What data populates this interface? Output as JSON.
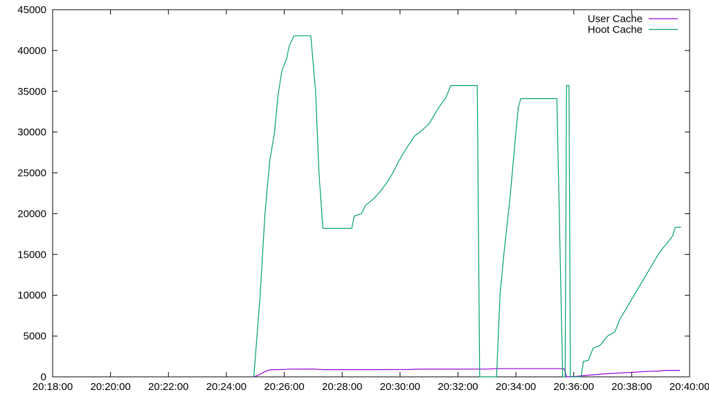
{
  "chart_data": {
    "type": "line",
    "x_format": "HH:MM:SS",
    "xlim": [
      "20:18:00",
      "20:40:00"
    ],
    "ylim": [
      0,
      45000
    ],
    "x_ticks": [
      "20:18:00",
      "20:20:00",
      "20:22:00",
      "20:24:00",
      "20:26:00",
      "20:28:00",
      "20:30:00",
      "20:32:00",
      "20:34:00",
      "20:36:00",
      "20:38:00",
      "20:40:00"
    ],
    "y_ticks": [
      0,
      5000,
      10000,
      15000,
      20000,
      25000,
      30000,
      35000,
      40000,
      45000
    ],
    "legend_position": "top-right",
    "grid": false,
    "series": [
      {
        "name": "User Cache",
        "color": "#9400d3",
        "points": [
          [
            "20:24:57",
            0
          ],
          [
            "20:25:10",
            300
          ],
          [
            "20:25:20",
            650
          ],
          [
            "20:25:30",
            850
          ],
          [
            "20:25:40",
            880
          ],
          [
            "20:26:00",
            900
          ],
          [
            "20:26:10",
            950
          ],
          [
            "20:27:00",
            960
          ],
          [
            "20:27:20",
            880
          ],
          [
            "20:29:00",
            880
          ],
          [
            "20:30:20",
            900
          ],
          [
            "20:30:40",
            940
          ],
          [
            "20:33:00",
            950
          ],
          [
            "20:33:20",
            1000
          ],
          [
            "20:35:40",
            1000
          ],
          [
            "20:35:45",
            0
          ],
          [
            "20:36:05",
            50
          ],
          [
            "20:36:30",
            200
          ],
          [
            "20:37:00",
            350
          ],
          [
            "20:37:30",
            450
          ],
          [
            "20:38:00",
            550
          ],
          [
            "20:38:30",
            650
          ],
          [
            "20:39:00",
            720
          ],
          [
            "20:39:10",
            800
          ],
          [
            "20:39:40",
            800
          ]
        ]
      },
      {
        "name": "Hoot Cache",
        "color": "#009e73",
        "points": [
          [
            "20:24:57",
            0
          ],
          [
            "20:25:10",
            10000
          ],
          [
            "20:25:20",
            20000
          ],
          [
            "20:25:30",
            26500
          ],
          [
            "20:25:40",
            30000
          ],
          [
            "20:25:47",
            34500
          ],
          [
            "20:25:55",
            37500
          ],
          [
            "20:26:05",
            39000
          ],
          [
            "20:26:10",
            40500
          ],
          [
            "20:26:20",
            41800
          ],
          [
            "20:26:55",
            41800
          ],
          [
            "20:27:05",
            35000
          ],
          [
            "20:27:12",
            25000
          ],
          [
            "20:27:20",
            18200
          ],
          [
            "20:28:20",
            18200
          ],
          [
            "20:28:25",
            19700
          ],
          [
            "20:28:40",
            20000
          ],
          [
            "20:28:48",
            21000
          ],
          [
            "20:29:05",
            21800
          ],
          [
            "20:29:20",
            22800
          ],
          [
            "20:29:35",
            24000
          ],
          [
            "20:29:45",
            25000
          ],
          [
            "20:29:58",
            26500
          ],
          [
            "20:30:08",
            27500
          ],
          [
            "20:30:15",
            28200
          ],
          [
            "20:30:30",
            29500
          ],
          [
            "20:30:45",
            30200
          ],
          [
            "20:31:00",
            31000
          ],
          [
            "20:31:10",
            32000
          ],
          [
            "20:31:20",
            33000
          ],
          [
            "20:31:35",
            34200
          ],
          [
            "20:31:45",
            35700
          ],
          [
            "20:32:40",
            35700
          ],
          [
            "20:32:45",
            0
          ],
          [
            "20:33:20",
            0
          ],
          [
            "20:33:27",
            10000
          ],
          [
            "20:33:35",
            15000
          ],
          [
            "20:33:48",
            22000
          ],
          [
            "20:34:00",
            30000
          ],
          [
            "20:34:05",
            33000
          ],
          [
            "20:34:10",
            34100
          ],
          [
            "20:35:25",
            34100
          ],
          [
            "20:35:37",
            0
          ],
          [
            "20:35:42",
            0
          ],
          [
            "20:35:45",
            35700
          ],
          [
            "20:35:50",
            35700
          ],
          [
            "20:35:53",
            0
          ],
          [
            "20:36:15",
            0
          ],
          [
            "20:36:20",
            1900
          ],
          [
            "20:36:30",
            2000
          ],
          [
            "20:36:40",
            3500
          ],
          [
            "20:36:55",
            3900
          ],
          [
            "20:37:10",
            5000
          ],
          [
            "20:37:25",
            5500
          ],
          [
            "20:37:35",
            7000
          ],
          [
            "20:37:50",
            8500
          ],
          [
            "20:38:05",
            10000
          ],
          [
            "20:38:20",
            11500
          ],
          [
            "20:38:30",
            12500
          ],
          [
            "20:38:45",
            14000
          ],
          [
            "20:38:55",
            15000
          ],
          [
            "20:39:05",
            15800
          ],
          [
            "20:39:15",
            16500
          ],
          [
            "20:39:25",
            17300
          ],
          [
            "20:39:30",
            18300
          ],
          [
            "20:39:42",
            18350
          ]
        ]
      }
    ]
  }
}
